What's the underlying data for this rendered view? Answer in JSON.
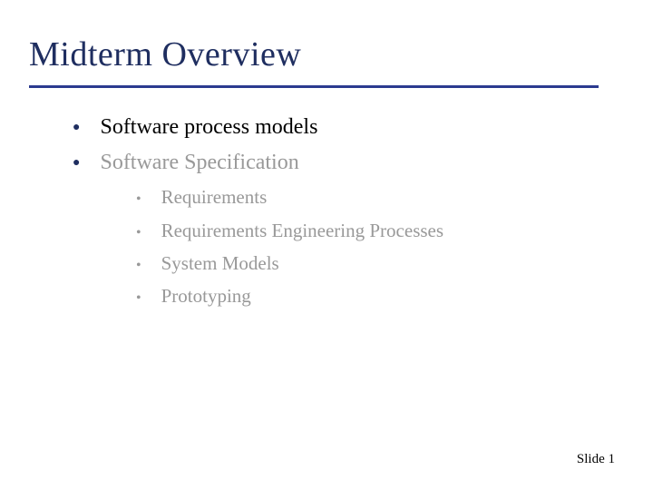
{
  "title": "Midterm Overview",
  "title_color": "#1f2e60",
  "underline_color": "#2b3a8f",
  "bullets": [
    {
      "text": "Software process models",
      "color": "#000000",
      "dot_color": "#1f2e60",
      "sub": []
    },
    {
      "text": "Software Specification",
      "color": "#999999",
      "dot_color": "#1f2e60",
      "sub": [
        {
          "text": "Requirements",
          "color": "#999999"
        },
        {
          "text": "Requirements Engineering Processes",
          "color": "#999999"
        },
        {
          "text": "System Models",
          "color": "#999999"
        },
        {
          "text": "Prototyping",
          "color": "#999999"
        }
      ]
    }
  ],
  "footer": {
    "label": "Slide",
    "number": "1",
    "color": "#000000"
  },
  "background_color": "#ffffff"
}
